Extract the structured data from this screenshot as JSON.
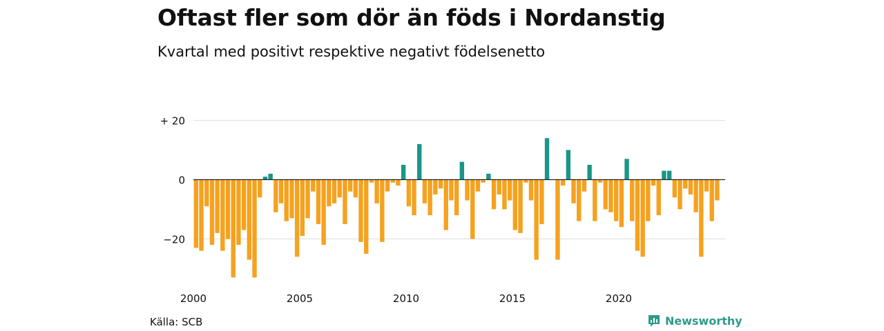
{
  "title": "Oftast fler som dör än föds i Nordanstig",
  "subtitle": "Kvartal med positivt respektive negativt födelsenetto",
  "source": "Källa: SCB",
  "brand": "Newsworthy",
  "colors": {
    "positive": "#1a9688",
    "negative": "#f5a21f",
    "grid": "#dddddd",
    "zero": "#222222"
  },
  "chart_data": {
    "type": "bar",
    "x_start": "2000 Q1",
    "y_ticks": [
      20,
      0,
      -20
    ],
    "y_tick_labels": [
      "+ 20",
      "0",
      "−20"
    ],
    "x_ticks": [
      2000,
      2005,
      2010,
      2015,
      2020
    ],
    "ylim": [
      -35,
      22
    ],
    "values": [
      -23,
      -24,
      -9,
      -22,
      -18,
      -24,
      -20,
      -33,
      -22,
      -17,
      -27,
      -33,
      -6,
      1,
      2,
      -11,
      -8,
      -14,
      -13,
      -26,
      -19,
      -13,
      -4,
      -15,
      -22,
      -9,
      -8,
      -6,
      -15,
      -4,
      -6,
      -21,
      -25,
      -1,
      -8,
      -21,
      -4,
      -1,
      -2,
      5,
      -9,
      -12,
      12,
      -8,
      -12,
      -5,
      -3,
      -17,
      -7,
      -12,
      6,
      -7,
      -20,
      -4,
      -1,
      2,
      -10,
      -5,
      -10,
      -7,
      -17,
      -18,
      -1,
      -7,
      -27,
      -15,
      14,
      0,
      -27,
      -2,
      10,
      -8,
      -14,
      -4,
      5,
      -14,
      -1,
      -10,
      -11,
      -14,
      -16,
      7,
      -14,
      -24,
      -26,
      -14,
      -2,
      -12,
      3,
      3,
      -6,
      -10,
      -3,
      -5,
      -11,
      -26,
      -4,
      -14,
      -7
    ]
  }
}
